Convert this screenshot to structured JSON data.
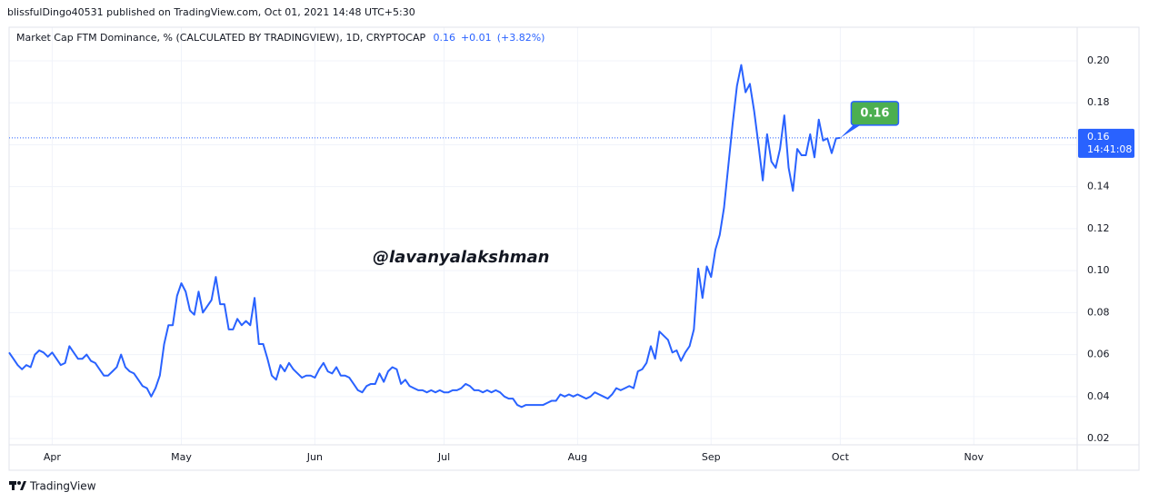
{
  "header": "blissfulDingo40531 published on TradingView.com, Oct 01, 2021 14:48 UTC+5:30",
  "footer": "TradingView",
  "watermark": "@lavanyalakshman",
  "legend": {
    "title": "Market Cap FTM Dominance, % (CALCULATED BY TRADINGVIEW), 1D, CRYPTOCAP",
    "value": "0.16",
    "change": "+0.01",
    "change_pct": "(+3.82%)"
  },
  "chart_data": {
    "type": "line",
    "title": "Market Cap FTM Dominance, % (CALCULATED BY TRADINGVIEW), 1D, CRYPTOCAP",
    "categories": [
      null,
      null,
      null,
      null,
      null,
      null,
      null,
      null,
      null,
      null,
      "Apr",
      null,
      null,
      null,
      null,
      null,
      null,
      null,
      null,
      null,
      null,
      null,
      null,
      null,
      null,
      null,
      null,
      null,
      null,
      null,
      null,
      null,
      null,
      null,
      null,
      null,
      null,
      null,
      null,
      null,
      "May",
      null,
      null,
      null,
      null,
      null,
      null,
      null,
      null,
      null,
      null,
      null,
      null,
      null,
      null,
      null,
      null,
      null,
      null,
      null,
      null,
      null,
      null,
      null,
      null,
      null,
      null,
      null,
      null,
      null,
      null,
      "Jun",
      null,
      null,
      null,
      null,
      null,
      null,
      null,
      null,
      null,
      null,
      null,
      null,
      null,
      null,
      null,
      null,
      null,
      null,
      null,
      null,
      null,
      null,
      null,
      null,
      null,
      null,
      null,
      null,
      null,
      "Jul",
      null,
      null,
      null,
      null,
      null,
      null,
      null,
      null,
      null,
      null,
      null,
      null,
      null,
      null,
      null,
      null,
      null,
      null,
      null,
      null,
      null,
      null,
      null,
      null,
      null,
      null,
      null,
      null,
      null,
      null,
      "Aug",
      null,
      null,
      null,
      null,
      null,
      null,
      null,
      null,
      null,
      null,
      null,
      null,
      null,
      null,
      null,
      null,
      null,
      null,
      null,
      null,
      null,
      null,
      null,
      null,
      null,
      null,
      null,
      null,
      null,
      null,
      "Sep",
      null,
      null,
      null,
      null,
      null,
      null,
      null,
      null,
      null,
      null,
      null,
      null,
      null,
      null,
      null,
      null,
      null,
      null,
      null,
      null,
      null,
      null,
      null,
      null,
      null,
      null,
      null,
      null,
      null,
      "Oct",
      null,
      null,
      null,
      null,
      null,
      null,
      null,
      null,
      null,
      null,
      null,
      null,
      null,
      null,
      null,
      null,
      null,
      null,
      null,
      null,
      null,
      null,
      null,
      null,
      null,
      null,
      null,
      null,
      null,
      null,
      "Nov",
      null,
      null,
      null,
      null,
      null,
      null,
      null,
      null,
      null,
      null,
      null,
      null,
      null,
      null,
      null,
      null,
      null,
      null,
      null,
      null,
      null,
      null,
      null,
      null
    ],
    "series": [
      {
        "name": "Market Cap FTM Dominance",
        "color": "#2962ff",
        "values": [
          0.061,
          0.058,
          0.055,
          0.053,
          0.055,
          0.054,
          0.06,
          0.062,
          0.061,
          0.059,
          0.061,
          0.058,
          0.055,
          0.056,
          0.064,
          0.061,
          0.058,
          0.058,
          0.06,
          0.057,
          0.056,
          0.053,
          0.05,
          0.05,
          0.052,
          0.054,
          0.06,
          0.054,
          0.052,
          0.051,
          0.048,
          0.045,
          0.044,
          0.04,
          0.044,
          0.05,
          0.065,
          0.074,
          0.074,
          0.088,
          0.094,
          0.09,
          0.081,
          0.079,
          0.09,
          0.08,
          0.083,
          0.086,
          0.097,
          0.084,
          0.084,
          0.072,
          0.072,
          0.077,
          0.074,
          0.076,
          0.074,
          0.087,
          0.065,
          0.065,
          0.058,
          0.05,
          0.048,
          0.055,
          0.052,
          0.056,
          0.053,
          0.051,
          0.049,
          0.05,
          0.05,
          0.049,
          0.053,
          0.056,
          0.052,
          0.051,
          0.054,
          0.05,
          0.05,
          0.049,
          0.046,
          0.043,
          0.042,
          0.045,
          0.046,
          0.046,
          0.051,
          0.047,
          0.052,
          0.054,
          0.053,
          0.046,
          0.048,
          0.045,
          0.044,
          0.043,
          0.043,
          0.042,
          0.043,
          0.042,
          0.043,
          0.042,
          0.042,
          0.043,
          0.043,
          0.044,
          0.046,
          0.045,
          0.043,
          0.043,
          0.042,
          0.043,
          0.042,
          0.043,
          0.042,
          0.04,
          0.039,
          0.039,
          0.036,
          0.035,
          0.036,
          0.036,
          0.036,
          0.036,
          0.036,
          0.037,
          0.038,
          0.038,
          0.041,
          0.04,
          0.041,
          0.04,
          0.041,
          0.04,
          0.039,
          0.04,
          0.042,
          0.041,
          0.04,
          0.039,
          0.041,
          0.044,
          0.043,
          0.044,
          0.045,
          0.044,
          0.052,
          0.053,
          0.056,
          0.064,
          0.058,
          0.071,
          0.069,
          0.067,
          0.061,
          0.062,
          0.057,
          0.061,
          0.064,
          0.072,
          0.101,
          0.087,
          0.102,
          0.097,
          0.11,
          0.117,
          0.13,
          0.15,
          0.17,
          0.188,
          0.198,
          0.185,
          0.189,
          0.176,
          0.16,
          0.143,
          0.165,
          0.152,
          0.149,
          0.158,
          0.174,
          0.149,
          0.138,
          0.158,
          0.155,
          0.155,
          0.165,
          0.154,
          0.172,
          0.162,
          0.163,
          0.156,
          0.163,
          0.1633,
          null,
          null,
          null,
          null,
          null,
          null,
          null,
          null,
          null,
          null,
          null,
          null,
          null,
          null,
          null,
          null,
          null,
          null,
          null,
          null,
          null,
          null,
          null,
          null,
          null,
          null,
          null,
          null,
          null,
          null,
          null,
          null,
          null,
          null,
          null,
          null,
          null,
          null,
          null,
          null,
          null,
          null,
          null,
          null,
          null,
          null,
          null,
          null,
          null,
          null,
          null,
          null,
          null,
          null,
          null
        ]
      }
    ],
    "ylim": [
      0.017,
      0.216
    ],
    "yticks": [
      {
        "value": 0.02,
        "label": "0.02"
      },
      {
        "value": 0.04,
        "label": "0.04"
      },
      {
        "value": 0.06,
        "label": "0.06"
      },
      {
        "value": 0.08,
        "label": "0.08"
      },
      {
        "value": 0.1,
        "label": "0.10"
      },
      {
        "value": 0.12,
        "label": "0.12"
      },
      {
        "value": 0.14,
        "label": "0.14"
      },
      {
        "value": 0.16,
        "label": "0.16"
      },
      {
        "value": 0.18,
        "label": "0.18"
      },
      {
        "value": 0.2,
        "label": "0.20"
      }
    ],
    "last_price": {
      "value": 0.1633,
      "label": "0.16"
    },
    "last_time": "14:41:08",
    "grid": true
  }
}
